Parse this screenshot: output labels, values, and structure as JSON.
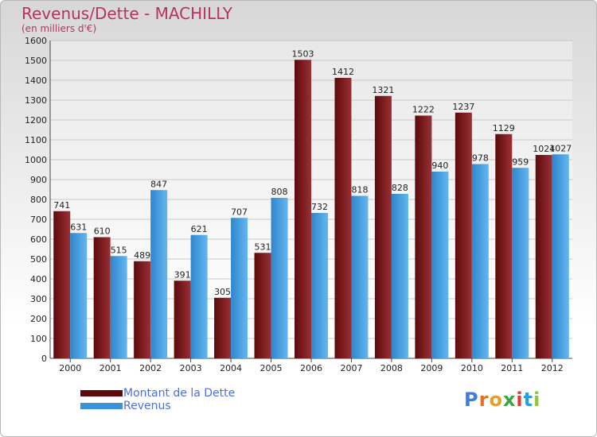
{
  "title": "Revenus/Dette - MACHILLY",
  "subtitle": "(en milliers d'€)",
  "logo_text": "Proxiti",
  "colors": {
    "title": "#b7335a",
    "dette": "#7a1a1c",
    "revenus": "#4aa4e6",
    "legend_text": "#4a6fe0"
  },
  "legend": [
    {
      "label": "Montant de la Dette",
      "color": "#5c0a0c"
    },
    {
      "label": "Revenus",
      "color": "#3b93db"
    }
  ],
  "chart_data": {
    "type": "bar",
    "title": "Revenus/Dette - MACHILLY",
    "subtitle": "(en milliers d'€)",
    "categories": [
      "2000",
      "2001",
      "2002",
      "2003",
      "2004",
      "2005",
      "2006",
      "2007",
      "2008",
      "2009",
      "2010",
      "2011",
      "2012"
    ],
    "series": [
      {
        "name": "Montant de la Dette",
        "values": [
          741,
          610,
          489,
          391,
          305,
          531,
          1503,
          1412,
          1321,
          1222,
          1237,
          1129,
          1024
        ]
      },
      {
        "name": "Revenus",
        "values": [
          631,
          515,
          847,
          621,
          707,
          808,
          732,
          818,
          828,
          940,
          978,
          959,
          1027
        ]
      }
    ],
    "ylim": [
      0,
      1600
    ],
    "yticks": [
      0,
      100,
      200,
      300,
      400,
      500,
      600,
      700,
      800,
      900,
      1000,
      1100,
      1200,
      1300,
      1400,
      1500,
      1600
    ],
    "grid": true,
    "legend_position": "bottom-left"
  }
}
